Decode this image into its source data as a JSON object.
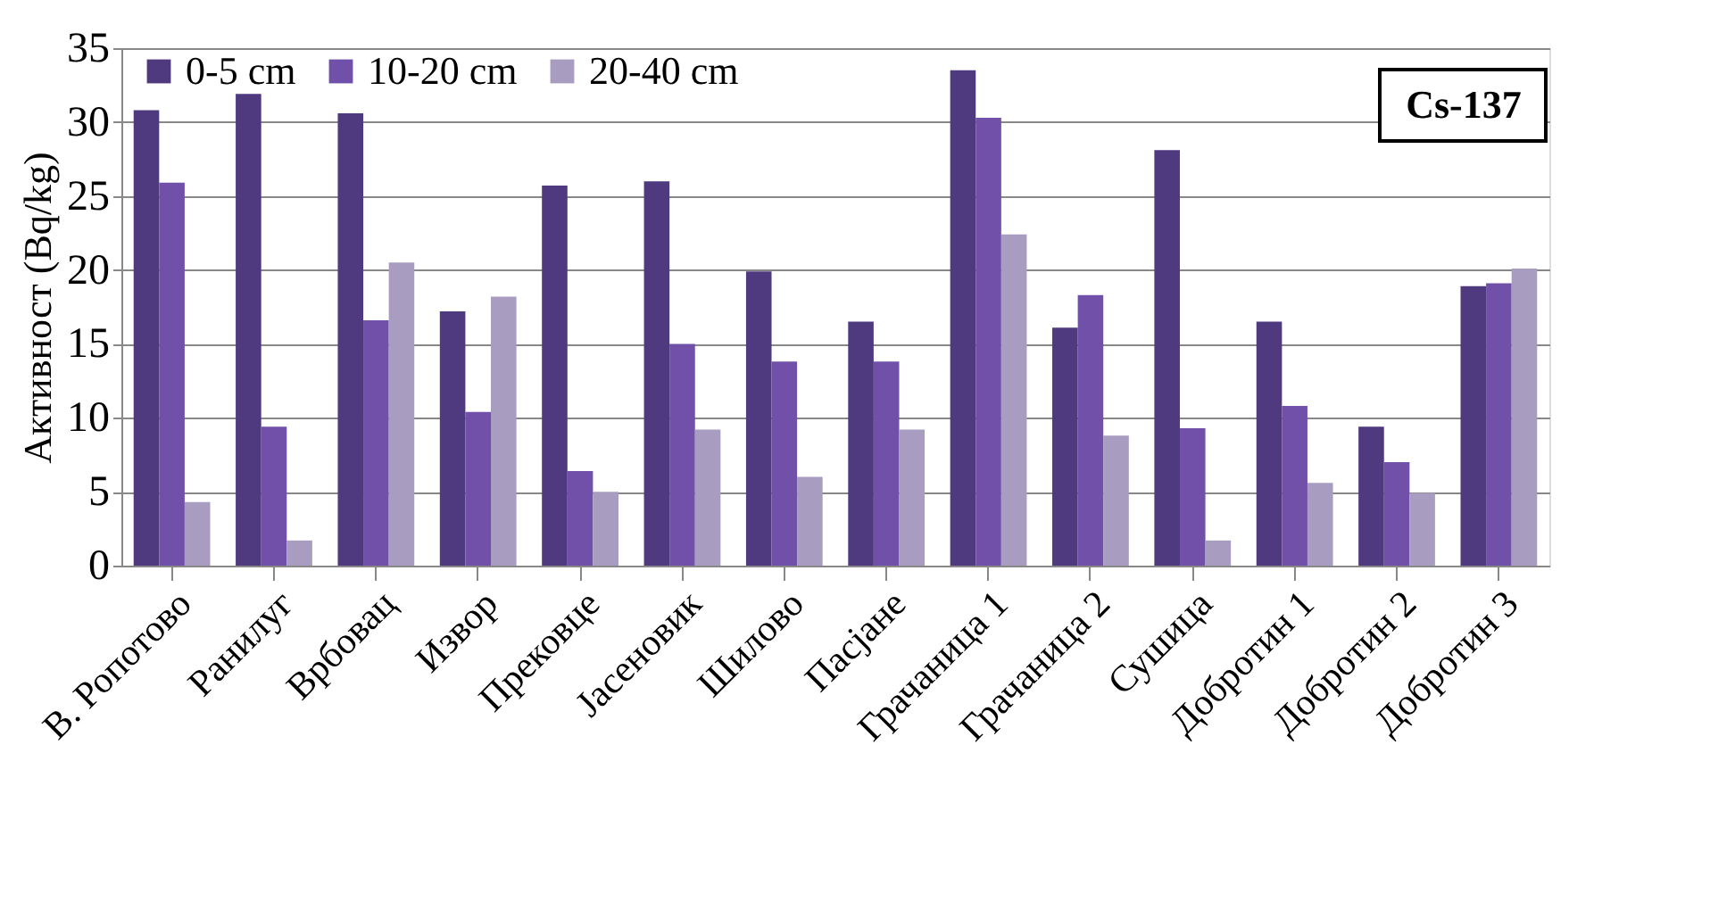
{
  "chart_data": {
    "type": "bar",
    "ylabel": "Активност (Bq/kg)",
    "categories": [
      "B. Ропотово",
      "Ранилуг",
      "Врбовац",
      "Извор",
      "Прековце",
      "Јасеновик",
      "Шилово",
      "Пасјане",
      "Грачаница 1",
      "Грачаница 2",
      "Сушица",
      "Добротин 1",
      "Добротин 2",
      "Добротин 3"
    ],
    "series": [
      {
        "name": "0-5 cm",
        "color": "#4f3a80",
        "values": [
          30.8,
          31.9,
          30.6,
          17.2,
          25.7,
          26.0,
          19.9,
          16.5,
          33.5,
          16.1,
          28.1,
          16.5,
          9.4,
          18.9
        ]
      },
      {
        "name": "10-20 cm",
        "color": "#7050a8",
        "values": [
          25.9,
          9.4,
          16.6,
          10.4,
          6.4,
          15.0,
          13.8,
          13.8,
          30.3,
          18.3,
          9.3,
          10.8,
          7.0,
          19.1
        ]
      },
      {
        "name": "20-40 cm",
        "color": "#a89cc0",
        "values": [
          4.3,
          1.7,
          20.5,
          18.2,
          5.0,
          9.2,
          6.0,
          9.2,
          22.4,
          8.8,
          1.7,
          5.6,
          4.9,
          20.1
        ]
      }
    ],
    "ylim": [
      0,
      35
    ],
    "yticks": [
      0,
      5,
      10,
      15,
      20,
      25,
      30,
      35
    ],
    "grid": "y",
    "legend": "top left",
    "annotations": [
      "Cs-137"
    ]
  }
}
